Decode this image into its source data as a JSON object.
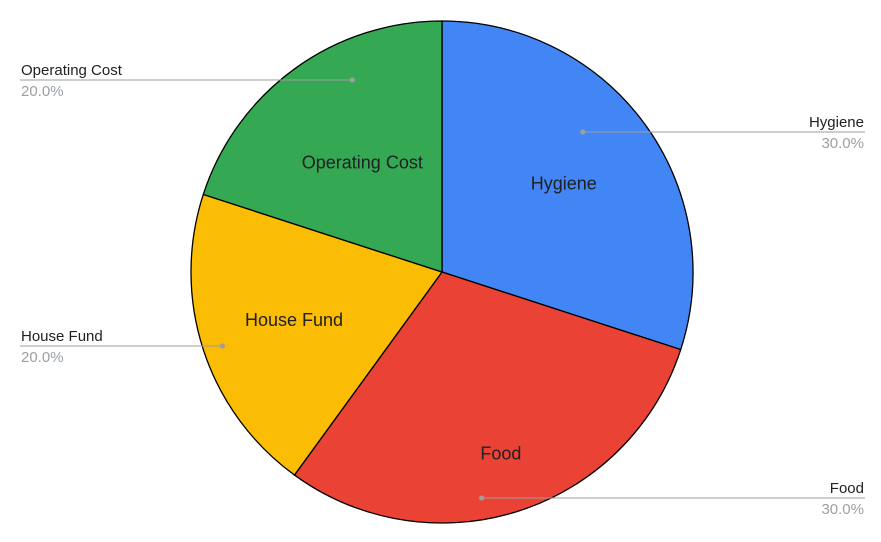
{
  "chart_data": {
    "type": "pie",
    "title": "",
    "slices": [
      {
        "label": "Hygiene",
        "value": 30.0,
        "percent_label": "30.0%",
        "color": "#4285F4"
      },
      {
        "label": "Food",
        "value": 30.0,
        "percent_label": "30.0%",
        "color": "#EA4335"
      },
      {
        "label": "House Fund",
        "value": 20.0,
        "percent_label": "20.0%",
        "color": "#FBBC04"
      },
      {
        "label": "Operating Cost",
        "value": 20.0,
        "percent_label": "20.0%",
        "color": "#34A853"
      }
    ],
    "start_angle": "12 o'clock",
    "direction": "clockwise",
    "labels": "inside slice and outside with leader lines",
    "legend": "none"
  }
}
